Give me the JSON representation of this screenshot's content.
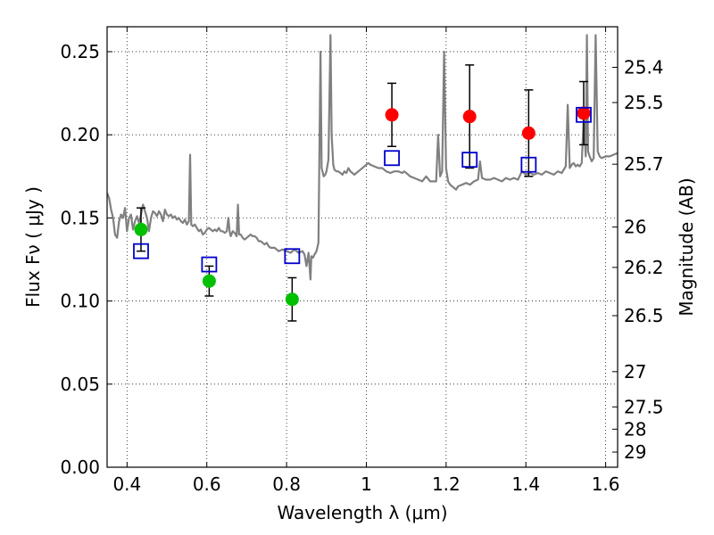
{
  "chart_data": {
    "type": "scatter",
    "xlabel": "Wavelength  λ (μm)",
    "ylabel": "Flux  Fν  ( μJy )",
    "y2label": "Magnitude (AB)",
    "xlim": [
      0.35,
      1.63
    ],
    "ylim": [
      0.0,
      0.265
    ],
    "x_ticks": [
      {
        "value": 0.4,
        "label": "0.4"
      },
      {
        "value": 0.6,
        "label": "0.6"
      },
      {
        "value": 0.8,
        "label": "0.8"
      },
      {
        "value": 1.0,
        "label": "1"
      },
      {
        "value": 1.2,
        "label": "1.2"
      },
      {
        "value": 1.4,
        "label": "1.4"
      },
      {
        "value": 1.6,
        "label": "1.6"
      }
    ],
    "y_ticks": [
      {
        "value": 0.0,
        "label": "0.00"
      },
      {
        "value": 0.05,
        "label": "0.05"
      },
      {
        "value": 0.1,
        "label": "0.10"
      },
      {
        "value": 0.15,
        "label": "0.15"
      },
      {
        "value": 0.2,
        "label": "0.20"
      },
      {
        "value": 0.25,
        "label": "0.25"
      }
    ],
    "y2_ticks": [
      {
        "flux": 0.2406,
        "label": "25.4"
      },
      {
        "flux": 0.2194,
        "label": "25.5"
      },
      {
        "flux": 0.1823,
        "label": "25.7"
      },
      {
        "flux": 0.1445,
        "label": "26"
      },
      {
        "flux": 0.1202,
        "label": "26.2"
      },
      {
        "flux": 0.0912,
        "label": "26.5"
      },
      {
        "flux": 0.0575,
        "label": "27"
      },
      {
        "flux": 0.0363,
        "label": "27.5"
      },
      {
        "flux": 0.0229,
        "label": "28"
      },
      {
        "flux": 0.0091,
        "label": "29"
      }
    ],
    "grid": true,
    "series": [
      {
        "color": "#00c000",
        "marker": "circle",
        "points": [
          {
            "x": 0.435,
            "y": 0.143,
            "yerr": 0.013
          },
          {
            "x": 0.606,
            "y": 0.112,
            "yerr": 0.009
          },
          {
            "x": 0.814,
            "y": 0.101,
            "yerr": 0.013
          }
        ]
      },
      {
        "color": "#ff0000",
        "marker": "circle",
        "points": [
          {
            "x": 1.064,
            "y": 0.212,
            "yerr": 0.019
          },
          {
            "x": 1.259,
            "y": 0.211,
            "yerr": 0.031
          },
          {
            "x": 1.407,
            "y": 0.201,
            "yerr": 0.026
          },
          {
            "x": 1.545,
            "y": 0.213,
            "yerr": 0.019
          }
        ]
      },
      {
        "color": "#0000cc",
        "marker": "open-square",
        "points": [
          {
            "x": 0.435,
            "y": 0.13
          },
          {
            "x": 0.606,
            "y": 0.122
          },
          {
            "x": 0.814,
            "y": 0.127
          },
          {
            "x": 1.064,
            "y": 0.186
          },
          {
            "x": 1.259,
            "y": 0.185
          },
          {
            "x": 1.407,
            "y": 0.182
          },
          {
            "x": 1.545,
            "y": 0.212
          }
        ]
      },
      {
        "color": "#808080",
        "marker": "line",
        "points": [
          [
            0.35,
            0.165
          ],
          [
            0.355,
            0.162
          ],
          [
            0.36,
            0.155
          ],
          [
            0.365,
            0.15
          ],
          [
            0.37,
            0.14
          ],
          [
            0.375,
            0.138
          ],
          [
            0.38,
            0.148
          ],
          [
            0.385,
            0.152
          ],
          [
            0.39,
            0.15
          ],
          [
            0.395,
            0.156
          ],
          [
            0.4,
            0.142
          ],
          [
            0.405,
            0.15
          ],
          [
            0.41,
            0.152
          ],
          [
            0.415,
            0.143
          ],
          [
            0.42,
            0.148
          ],
          [
            0.425,
            0.151
          ],
          [
            0.43,
            0.147
          ],
          [
            0.435,
            0.152
          ],
          [
            0.44,
            0.158
          ],
          [
            0.445,
            0.154
          ],
          [
            0.45,
            0.15
          ],
          [
            0.455,
            0.142
          ],
          [
            0.46,
            0.15
          ],
          [
            0.465,
            0.154
          ],
          [
            0.47,
            0.153
          ],
          [
            0.475,
            0.151
          ],
          [
            0.48,
            0.154
          ],
          [
            0.485,
            0.152
          ],
          [
            0.49,
            0.148
          ],
          [
            0.495,
            0.155
          ],
          [
            0.5,
            0.152
          ],
          [
            0.505,
            0.151
          ],
          [
            0.51,
            0.152
          ],
          [
            0.515,
            0.15
          ],
          [
            0.52,
            0.151
          ],
          [
            0.525,
            0.149
          ],
          [
            0.53,
            0.15
          ],
          [
            0.535,
            0.148
          ],
          [
            0.54,
            0.147
          ],
          [
            0.545,
            0.149
          ],
          [
            0.55,
            0.146
          ],
          [
            0.555,
            0.148
          ],
          [
            0.558,
            0.188
          ],
          [
            0.561,
            0.146
          ],
          [
            0.565,
            0.145
          ],
          [
            0.57,
            0.146
          ],
          [
            0.575,
            0.144
          ],
          [
            0.58,
            0.142
          ],
          [
            0.585,
            0.143
          ],
          [
            0.59,
            0.14
          ],
          [
            0.595,
            0.141
          ],
          [
            0.6,
            0.143
          ],
          [
            0.605,
            0.144
          ],
          [
            0.61,
            0.143
          ],
          [
            0.615,
            0.142
          ],
          [
            0.62,
            0.143
          ],
          [
            0.625,
            0.142
          ],
          [
            0.63,
            0.144
          ],
          [
            0.635,
            0.142
          ],
          [
            0.64,
            0.142
          ],
          [
            0.645,
            0.141
          ],
          [
            0.65,
            0.142
          ],
          [
            0.654,
            0.15
          ],
          [
            0.657,
            0.142
          ],
          [
            0.66,
            0.139
          ],
          [
            0.665,
            0.142
          ],
          [
            0.67,
            0.141
          ],
          [
            0.675,
            0.139
          ],
          [
            0.678,
            0.158
          ],
          [
            0.681,
            0.14
          ],
          [
            0.685,
            0.14
          ],
          [
            0.69,
            0.138
          ],
          [
            0.695,
            0.137
          ],
          [
            0.7,
            0.138
          ],
          [
            0.705,
            0.139
          ],
          [
            0.71,
            0.14
          ],
          [
            0.715,
            0.139
          ],
          [
            0.72,
            0.139
          ],
          [
            0.725,
            0.138
          ],
          [
            0.73,
            0.136
          ],
          [
            0.735,
            0.136
          ],
          [
            0.74,
            0.135
          ],
          [
            0.745,
            0.134
          ],
          [
            0.75,
            0.135
          ],
          [
            0.755,
            0.133
          ],
          [
            0.76,
            0.132
          ],
          [
            0.77,
            0.132
          ],
          [
            0.78,
            0.13
          ],
          [
            0.79,
            0.131
          ],
          [
            0.8,
            0.13
          ],
          [
            0.81,
            0.129
          ],
          [
            0.82,
            0.131
          ],
          [
            0.83,
            0.129
          ],
          [
            0.84,
            0.13
          ],
          [
            0.845,
            0.128
          ],
          [
            0.85,
            0.121
          ],
          [
            0.855,
            0.129
          ],
          [
            0.86,
            0.113
          ],
          [
            0.862,
            0.127
          ],
          [
            0.866,
            0.126
          ],
          [
            0.87,
            0.128
          ],
          [
            0.875,
            0.13
          ],
          [
            0.88,
            0.135
          ],
          [
            0.885,
            0.25
          ],
          [
            0.888,
            0.18
          ],
          [
            0.893,
            0.175
          ],
          [
            0.897,
            0.176
          ],
          [
            0.9,
            0.178
          ],
          [
            0.905,
            0.185
          ],
          [
            0.91,
            0.26
          ],
          [
            0.913,
            0.2
          ],
          [
            0.917,
            0.182
          ],
          [
            0.92,
            0.179
          ],
          [
            0.925,
            0.178
          ],
          [
            0.93,
            0.178
          ],
          [
            0.935,
            0.177
          ],
          [
            0.94,
            0.176
          ],
          [
            0.945,
            0.178
          ],
          [
            0.95,
            0.177
          ],
          [
            0.955,
            0.18
          ],
          [
            0.96,
            0.178
          ],
          [
            0.965,
            0.177
          ],
          [
            0.97,
            0.176
          ],
          [
            0.975,
            0.177
          ],
          [
            0.98,
            0.178
          ],
          [
            0.985,
            0.179
          ],
          [
            0.99,
            0.18
          ],
          [
            0.995,
            0.181
          ],
          [
            1.0,
            0.182
          ],
          [
            1.005,
            0.183
          ],
          [
            1.01,
            0.182
          ],
          [
            1.02,
            0.181
          ],
          [
            1.03,
            0.18
          ],
          [
            1.04,
            0.18
          ],
          [
            1.05,
            0.178
          ],
          [
            1.06,
            0.177
          ],
          [
            1.07,
            0.178
          ],
          [
            1.08,
            0.178
          ],
          [
            1.09,
            0.177
          ],
          [
            1.095,
            0.178
          ],
          [
            1.1,
            0.177
          ],
          [
            1.11,
            0.175
          ],
          [
            1.12,
            0.174
          ],
          [
            1.13,
            0.173
          ],
          [
            1.14,
            0.172
          ],
          [
            1.15,
            0.175
          ],
          [
            1.16,
            0.172
          ],
          [
            1.17,
            0.172
          ],
          [
            1.175,
            0.172
          ],
          [
            1.18,
            0.2
          ],
          [
            1.185,
            0.175
          ],
          [
            1.19,
            0.178
          ],
          [
            1.195,
            0.25
          ],
          [
            1.2,
            0.18
          ],
          [
            1.205,
            0.172
          ],
          [
            1.21,
            0.17
          ],
          [
            1.215,
            0.169
          ],
          [
            1.22,
            0.168
          ],
          [
            1.225,
            0.167
          ],
          [
            1.23,
            0.169
          ],
          [
            1.24,
            0.17
          ],
          [
            1.25,
            0.171
          ],
          [
            1.26,
            0.17
          ],
          [
            1.27,
            0.172
          ],
          [
            1.28,
            0.173
          ],
          [
            1.285,
            0.184
          ],
          [
            1.29,
            0.174
          ],
          [
            1.3,
            0.173
          ],
          [
            1.31,
            0.173
          ],
          [
            1.32,
            0.174
          ],
          [
            1.33,
            0.173
          ],
          [
            1.34,
            0.172
          ],
          [
            1.35,
            0.174
          ],
          [
            1.36,
            0.173
          ],
          [
            1.37,
            0.174
          ],
          [
            1.38,
            0.173
          ],
          [
            1.39,
            0.178
          ],
          [
            1.4,
            0.176
          ],
          [
            1.41,
            0.177
          ],
          [
            1.42,
            0.176
          ],
          [
            1.43,
            0.177
          ],
          [
            1.44,
            0.176
          ],
          [
            1.45,
            0.178
          ],
          [
            1.46,
            0.177
          ],
          [
            1.47,
            0.176
          ],
          [
            1.48,
            0.178
          ],
          [
            1.49,
            0.177
          ],
          [
            1.5,
            0.181
          ],
          [
            1.505,
            0.218
          ],
          [
            1.51,
            0.18
          ],
          [
            1.515,
            0.182
          ],
          [
            1.52,
            0.183
          ],
          [
            1.525,
            0.181
          ],
          [
            1.53,
            0.182
          ],
          [
            1.535,
            0.181
          ],
          [
            1.54,
            0.183
          ],
          [
            1.545,
            0.21
          ],
          [
            1.55,
            0.187
          ],
          [
            1.553,
            0.26
          ],
          [
            1.556,
            0.19
          ],
          [
            1.56,
            0.187
          ],
          [
            1.565,
            0.184
          ],
          [
            1.57,
            0.186
          ],
          [
            1.575,
            0.26
          ],
          [
            1.58,
            0.19
          ],
          [
            1.585,
            0.187
          ],
          [
            1.59,
            0.186
          ],
          [
            1.6,
            0.187
          ],
          [
            1.61,
            0.187
          ],
          [
            1.62,
            0.188
          ],
          [
            1.63,
            0.189
          ]
        ]
      }
    ]
  }
}
